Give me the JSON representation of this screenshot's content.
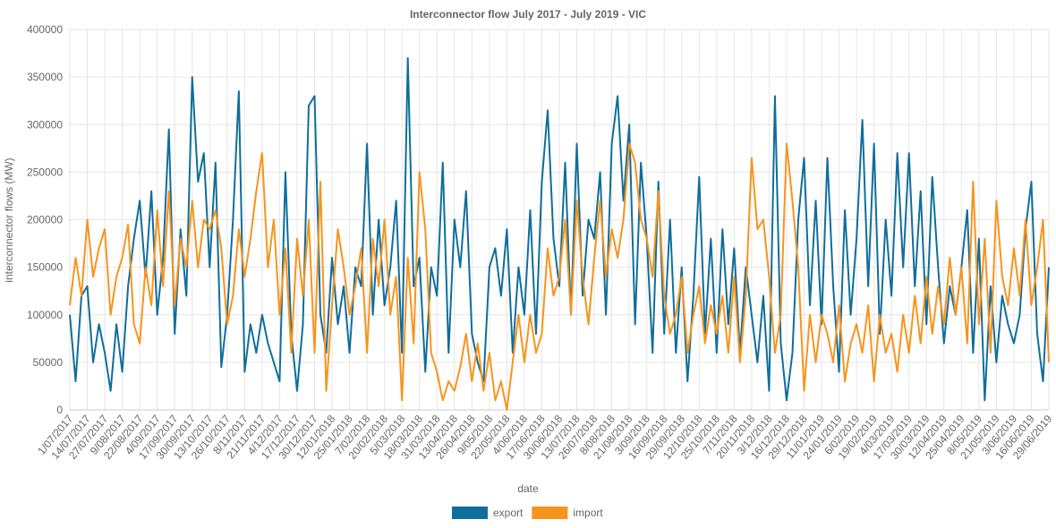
{
  "chart_data": {
    "type": "line",
    "title": "Interconnector flow July 2017 - July 2019 - VIC",
    "x_label": "date",
    "y_label": "interconnector flows (MW)",
    "ylim": [
      0,
      400000
    ],
    "yticks": [
      0,
      50000,
      100000,
      150000,
      200000,
      250000,
      300000,
      350000,
      400000
    ],
    "grid": true,
    "legend": "bottom",
    "categories": [
      "1/07/2017",
      null,
      null,
      "14/07/2017",
      null,
      null,
      "27/07/2017",
      null,
      null,
      "9/08/2017",
      null,
      null,
      "22/08/2017",
      null,
      null,
      "4/09/2017",
      null,
      null,
      "17/09/2017",
      null,
      null,
      "30/09/2017",
      null,
      null,
      "13/10/2017",
      null,
      null,
      "26/10/2017",
      null,
      null,
      "8/11/2017",
      null,
      null,
      "21/11/2017",
      null,
      null,
      "4/12/2017",
      null,
      null,
      "17/12/2017",
      null,
      null,
      "30/12/2017",
      null,
      null,
      "12/01/2018",
      null,
      null,
      "25/01/2018",
      null,
      null,
      "7/02/2018",
      null,
      null,
      "20/02/2018",
      null,
      null,
      "5/03/2018",
      null,
      null,
      "18/03/2018",
      null,
      null,
      "31/03/2018",
      null,
      null,
      "13/04/2018",
      null,
      null,
      "26/04/2018",
      null,
      null,
      "9/05/2018",
      null,
      null,
      "22/05/2018",
      null,
      null,
      "4/06/2018",
      null,
      null,
      "17/06/2018",
      null,
      null,
      "30/06/2018",
      null,
      null,
      "13/07/2018",
      null,
      null,
      "26/07/2018",
      null,
      null,
      "8/08/2018",
      null,
      null,
      "21/08/2018",
      null,
      null,
      "3/09/2018",
      null,
      null,
      "16/09/2018",
      null,
      null,
      "29/09/2018",
      null,
      null,
      "12/10/2018",
      null,
      null,
      "25/10/2018",
      null,
      null,
      "7/11/2018",
      null,
      null,
      "20/11/2018",
      null,
      null,
      "3/12/2018",
      null,
      null,
      "16/12/2018",
      null,
      null,
      "29/12/2018",
      null,
      null,
      "11/01/2019",
      null,
      null,
      "24/01/2019",
      null,
      null,
      "6/02/2019",
      null,
      null,
      "19/02/2019",
      null,
      null,
      "4/03/2019",
      null,
      null,
      "17/03/2019",
      null,
      null,
      "30/03/2019",
      null,
      null,
      "12/04/2019",
      null,
      null,
      "25/04/2019",
      null,
      null,
      "8/05/2019",
      null,
      null,
      "21/05/2019",
      null,
      null,
      "3/06/2019",
      null,
      null,
      "16/06/2019",
      null,
      null,
      "29/06/2019"
    ],
    "series": [
      {
        "name": "export",
        "color": "#0f6e9c",
        "values": [
          100000,
          30000,
          120000,
          130000,
          50000,
          90000,
          60000,
          20000,
          90000,
          40000,
          130000,
          180000,
          220000,
          140000,
          230000,
          100000,
          160000,
          295000,
          80000,
          190000,
          120000,
          350000,
          240000,
          270000,
          150000,
          260000,
          45000,
          100000,
          200000,
          335000,
          40000,
          90000,
          60000,
          100000,
          70000,
          50000,
          30000,
          250000,
          80000,
          20000,
          90000,
          320000,
          330000,
          100000,
          60000,
          160000,
          90000,
          130000,
          60000,
          150000,
          130000,
          280000,
          100000,
          200000,
          110000,
          150000,
          220000,
          60000,
          370000,
          130000,
          160000,
          40000,
          150000,
          120000,
          260000,
          60000,
          200000,
          150000,
          230000,
          80000,
          50000,
          30000,
          150000,
          170000,
          120000,
          190000,
          60000,
          150000,
          100000,
          210000,
          80000,
          240000,
          315000,
          180000,
          130000,
          260000,
          100000,
          280000,
          120000,
          200000,
          180000,
          250000,
          100000,
          280000,
          330000,
          220000,
          300000,
          90000,
          260000,
          180000,
          60000,
          240000,
          80000,
          200000,
          60000,
          150000,
          30000,
          120000,
          245000,
          80000,
          180000,
          60000,
          190000,
          90000,
          170000,
          60000,
          150000,
          100000,
          50000,
          120000,
          20000,
          330000,
          70000,
          10000,
          60000,
          200000,
          265000,
          110000,
          220000,
          90000,
          265000,
          130000,
          40000,
          210000,
          100000,
          180000,
          305000,
          130000,
          280000,
          80000,
          200000,
          120000,
          270000,
          150000,
          270000,
          130000,
          230000,
          90000,
          245000,
          150000,
          70000,
          130000,
          100000,
          150000,
          210000,
          60000,
          180000,
          10000,
          130000,
          50000,
          120000,
          90000,
          70000,
          100000,
          190000,
          240000,
          80000,
          30000,
          150000
        ]
      },
      {
        "name": "import",
        "color": "#f7941d",
        "values": [
          110000,
          160000,
          120000,
          200000,
          140000,
          170000,
          190000,
          100000,
          140000,
          160000,
          195000,
          90000,
          70000,
          150000,
          110000,
          210000,
          130000,
          230000,
          110000,
          180000,
          150000,
          220000,
          150000,
          200000,
          190000,
          210000,
          170000,
          90000,
          120000,
          190000,
          140000,
          180000,
          230000,
          270000,
          150000,
          200000,
          100000,
          170000,
          60000,
          180000,
          120000,
          200000,
          60000,
          240000,
          20000,
          110000,
          190000,
          150000,
          100000,
          130000,
          170000,
          60000,
          180000,
          130000,
          200000,
          100000,
          140000,
          10000,
          160000,
          70000,
          250000,
          190000,
          60000,
          40000,
          10000,
          30000,
          20000,
          45000,
          80000,
          30000,
          70000,
          20000,
          60000,
          10000,
          30000,
          0,
          50000,
          100000,
          50000,
          100000,
          60000,
          80000,
          170000,
          120000,
          140000,
          200000,
          100000,
          220000,
          140000,
          90000,
          160000,
          220000,
          140000,
          190000,
          160000,
          200000,
          280000,
          260000,
          200000,
          180000,
          140000,
          230000,
          120000,
          80000,
          100000,
          140000,
          60000,
          100000,
          130000,
          70000,
          110000,
          80000,
          120000,
          60000,
          140000,
          50000,
          120000,
          265000,
          190000,
          200000,
          140000,
          60000,
          100000,
          280000,
          220000,
          150000,
          20000,
          100000,
          50000,
          100000,
          80000,
          50000,
          110000,
          30000,
          70000,
          90000,
          60000,
          110000,
          30000,
          100000,
          60000,
          80000,
          40000,
          100000,
          60000,
          120000,
          70000,
          140000,
          80000,
          130000,
          90000,
          160000,
          100000,
          150000,
          70000,
          240000,
          90000,
          180000,
          60000,
          220000,
          140000,
          110000,
          170000,
          120000,
          200000,
          110000,
          150000,
          200000,
          50000
        ]
      }
    ]
  }
}
